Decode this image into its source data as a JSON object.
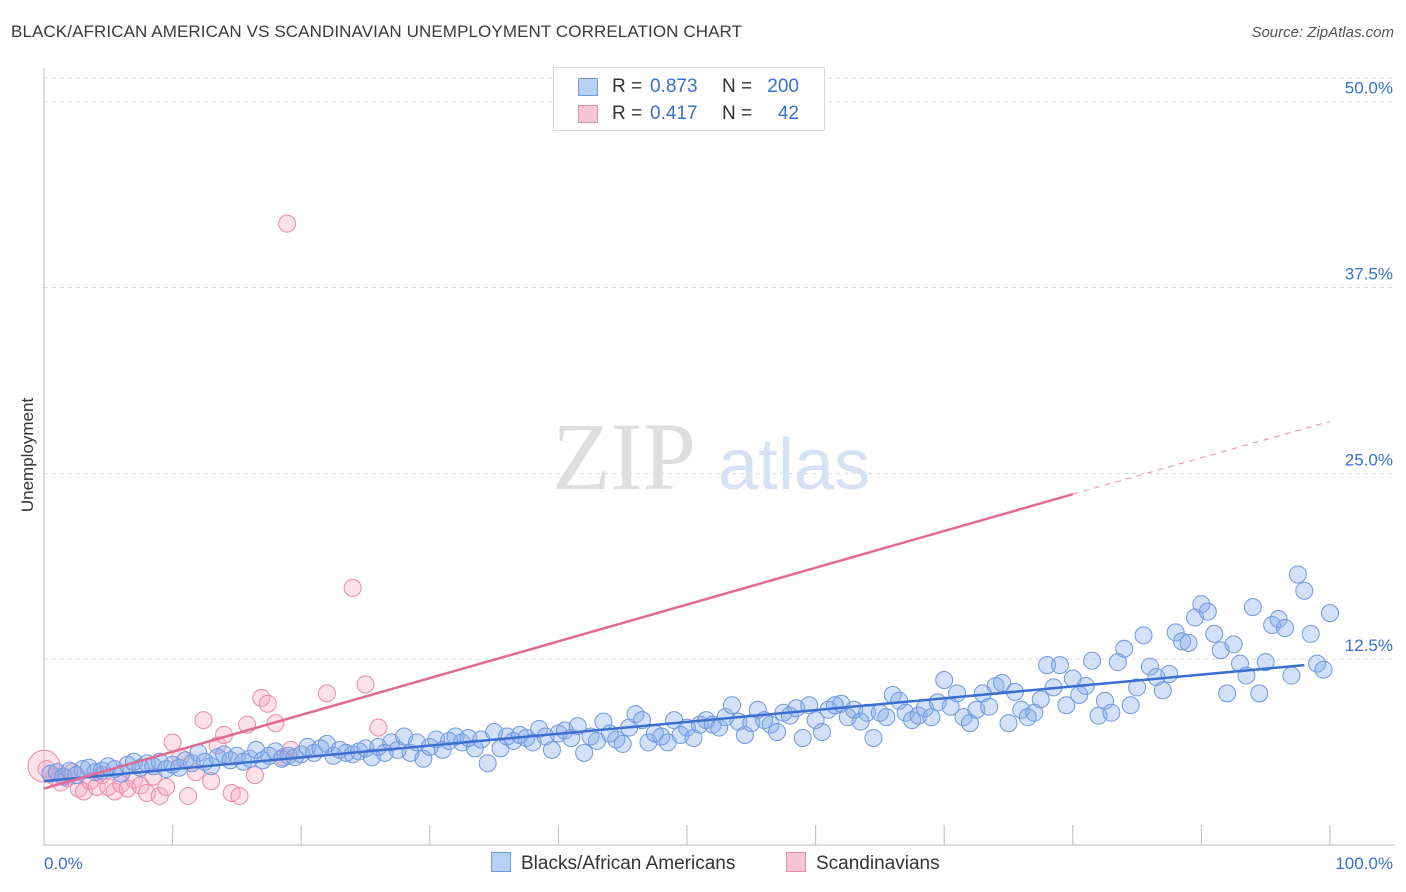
{
  "title": "BLACK/AFRICAN AMERICAN VS SCANDINAVIAN UNEMPLOYMENT CORRELATION CHART",
  "source": "Source: ZipAtlas.com",
  "watermark": {
    "zip": "ZIP",
    "atlas": "atlas"
  },
  "legend": {
    "r_label": "R =",
    "n_label": "N =",
    "series": [
      {
        "r": "0.873",
        "n": "200",
        "swatch_fill": "#b8d0f4",
        "swatch_stroke": "#6f98de"
      },
      {
        "r": "0.417",
        "n": "42",
        "swatch_fill": "#f7c6d6",
        "swatch_stroke": "#e88aa8"
      }
    ]
  },
  "bottom_legend": [
    "Blacks/African Americans",
    "Scandinavians"
  ],
  "colors": {
    "blue": "#3a6fd0",
    "blue_fill": "rgba(130,170,235,0.35)",
    "blue_stroke": "#6f98de",
    "pink": "#e06a97",
    "pink_fill": "rgba(245,170,195,0.35)",
    "pink_stroke": "#e88aa8",
    "tick_text": "#3a6fd0",
    "grid": "#d9d9d9"
  },
  "chart_data": {
    "type": "scatter",
    "title": "BLACK/AFRICAN AMERICAN VS SCANDINAVIAN UNEMPLOYMENT CORRELATION CHART",
    "xlabel": "",
    "ylabel": "Unemployment",
    "xlim": [
      0,
      100
    ],
    "ylim": [
      0,
      52
    ],
    "x_tick_labels": [
      "0.0%",
      "100.0%"
    ],
    "y_ticks": [
      12.5,
      25.0,
      37.5,
      50.0
    ],
    "y_tick_labels": [
      "12.5%",
      "25.0%",
      "37.5%",
      "50.0%"
    ],
    "grid": true,
    "legend_position": "top-center",
    "series": [
      {
        "name": "Blacks/African Americans",
        "r": 0.873,
        "n": 200,
        "trend": {
          "x": [
            0,
            98
          ],
          "y": [
            4.3,
            12.1
          ],
          "extend_to": 98
        },
        "points": [
          [
            0.5,
            4.8
          ],
          [
            1,
            4.9
          ],
          [
            1.5,
            4.6
          ],
          [
            2,
            5.0
          ],
          [
            2.5,
            4.7
          ],
          [
            3,
            5.1
          ],
          [
            3.5,
            5.2
          ],
          [
            4,
            4.9
          ],
          [
            4.5,
            5.0
          ],
          [
            5,
            5.3
          ],
          [
            5.5,
            5.1
          ],
          [
            6,
            4.8
          ],
          [
            6.5,
            5.4
          ],
          [
            7,
            5.6
          ],
          [
            7.5,
            5.2
          ],
          [
            8,
            5.5
          ],
          [
            8.5,
            5.3
          ],
          [
            9,
            5.6
          ],
          [
            9.5,
            5.1
          ],
          [
            10,
            5.4
          ],
          [
            10.5,
            5.2
          ],
          [
            11,
            5.7
          ],
          [
            11.5,
            5.5
          ],
          [
            12,
            6.2
          ],
          [
            12.5,
            5.6
          ],
          [
            13,
            5.3
          ],
          [
            13.5,
            5.9
          ],
          [
            14,
            6.1
          ],
          [
            14.5,
            5.7
          ],
          [
            15,
            6.0
          ],
          [
            15.5,
            5.6
          ],
          [
            16,
            5.8
          ],
          [
            16.5,
            6.4
          ],
          [
            17,
            5.7
          ],
          [
            17.5,
            6.0
          ],
          [
            18,
            6.3
          ],
          [
            18.5,
            5.8
          ],
          [
            19,
            6.0
          ],
          [
            19.5,
            5.9
          ],
          [
            20,
            6.1
          ],
          [
            20.5,
            6.6
          ],
          [
            21,
            6.2
          ],
          [
            21.5,
            6.5
          ],
          [
            22,
            6.8
          ],
          [
            22.5,
            6.0
          ],
          [
            23,
            6.4
          ],
          [
            23.5,
            6.2
          ],
          [
            24,
            6.1
          ],
          [
            24.5,
            6.3
          ],
          [
            25,
            6.5
          ],
          [
            25.5,
            5.9
          ],
          [
            26,
            6.6
          ],
          [
            26.5,
            6.2
          ],
          [
            27,
            6.9
          ],
          [
            27.5,
            6.4
          ],
          [
            28,
            7.3
          ],
          [
            28.5,
            6.2
          ],
          [
            29,
            6.9
          ],
          [
            29.5,
            5.8
          ],
          [
            30,
            6.6
          ],
          [
            30.5,
            7.1
          ],
          [
            31,
            6.4
          ],
          [
            31.5,
            7.0
          ],
          [
            32,
            7.3
          ],
          [
            32.5,
            6.9
          ],
          [
            33,
            7.2
          ],
          [
            33.5,
            6.5
          ],
          [
            34,
            7.1
          ],
          [
            34.5,
            5.5
          ],
          [
            35,
            7.6
          ],
          [
            35.5,
            6.5
          ],
          [
            36,
            7.3
          ],
          [
            36.5,
            7.0
          ],
          [
            37,
            7.4
          ],
          [
            37.5,
            7.2
          ],
          [
            38,
            6.9
          ],
          [
            38.5,
            7.8
          ],
          [
            39,
            7.3
          ],
          [
            39.5,
            6.4
          ],
          [
            40,
            7.5
          ],
          [
            40.5,
            7.7
          ],
          [
            41,
            7.2
          ],
          [
            41.5,
            8.0
          ],
          [
            42,
            6.2
          ],
          [
            42.5,
            7.3
          ],
          [
            43,
            7.0
          ],
          [
            43.5,
            8.3
          ],
          [
            44,
            7.5
          ],
          [
            44.5,
            7.1
          ],
          [
            45,
            6.8
          ],
          [
            45.5,
            7.9
          ],
          [
            46,
            8.8
          ],
          [
            46.5,
            8.4
          ],
          [
            47,
            6.9
          ],
          [
            47.5,
            7.5
          ],
          [
            48,
            7.3
          ],
          [
            48.5,
            6.9
          ],
          [
            49,
            8.4
          ],
          [
            49.5,
            7.4
          ],
          [
            50,
            7.9
          ],
          [
            50.5,
            7.2
          ],
          [
            51,
            8.1
          ],
          [
            51.5,
            8.4
          ],
          [
            52,
            8.1
          ],
          [
            52.5,
            7.9
          ],
          [
            53,
            8.6
          ],
          [
            53.5,
            9.4
          ],
          [
            54,
            8.3
          ],
          [
            54.5,
            7.4
          ],
          [
            55,
            8.2
          ],
          [
            55.5,
            9.1
          ],
          [
            56,
            8.4
          ],
          [
            56.5,
            8.1
          ],
          [
            57,
            7.6
          ],
          [
            57.5,
            8.9
          ],
          [
            58,
            8.7
          ],
          [
            58.5,
            9.2
          ],
          [
            59,
            7.2
          ],
          [
            59.5,
            9.4
          ],
          [
            60,
            8.4
          ],
          [
            60.5,
            7.6
          ],
          [
            61,
            9.1
          ],
          [
            61.5,
            9.4
          ],
          [
            62,
            9.5
          ],
          [
            62.5,
            8.6
          ],
          [
            63,
            9.1
          ],
          [
            63.5,
            8.3
          ],
          [
            64,
            8.9
          ],
          [
            64.5,
            7.2
          ],
          [
            65,
            8.9
          ],
          [
            65.5,
            8.6
          ],
          [
            66,
            10.1
          ],
          [
            66.5,
            9.7
          ],
          [
            67,
            8.9
          ],
          [
            67.5,
            8.4
          ],
          [
            68,
            8.7
          ],
          [
            68.5,
            9.2
          ],
          [
            69,
            8.6
          ],
          [
            69.5,
            9.6
          ],
          [
            70,
            11.1
          ],
          [
            70.5,
            9.3
          ],
          [
            71,
            10.2
          ],
          [
            71.5,
            8.6
          ],
          [
            72,
            8.2
          ],
          [
            72.5,
            9.1
          ],
          [
            73,
            10.2
          ],
          [
            73.5,
            9.3
          ],
          [
            74,
            10.7
          ],
          [
            74.5,
            10.9
          ],
          [
            75,
            8.2
          ],
          [
            75.5,
            10.3
          ],
          [
            76,
            9.1
          ],
          [
            76.5,
            8.6
          ],
          [
            77,
            8.9
          ],
          [
            77.5,
            9.8
          ],
          [
            78,
            12.1
          ],
          [
            78.5,
            10.6
          ],
          [
            79,
            12.1
          ],
          [
            79.5,
            9.4
          ],
          [
            80,
            11.2
          ],
          [
            80.5,
            10.1
          ],
          [
            81,
            10.7
          ],
          [
            81.5,
            12.4
          ],
          [
            82,
            8.7
          ],
          [
            82.5,
            9.7
          ],
          [
            83,
            8.9
          ],
          [
            83.5,
            12.3
          ],
          [
            84,
            13.2
          ],
          [
            84.5,
            9.4
          ],
          [
            85,
            10.6
          ],
          [
            85.5,
            14.1
          ],
          [
            86,
            12.0
          ],
          [
            86.5,
            11.3
          ],
          [
            87,
            10.4
          ],
          [
            87.5,
            11.5
          ],
          [
            88,
            14.3
          ],
          [
            88.5,
            13.7
          ],
          [
            89,
            13.6
          ],
          [
            89.5,
            15.3
          ],
          [
            90,
            16.2
          ],
          [
            90.5,
            15.7
          ],
          [
            91,
            14.2
          ],
          [
            91.5,
            13.1
          ],
          [
            92,
            10.2
          ],
          [
            92.5,
            13.5
          ],
          [
            93,
            12.2
          ],
          [
            93.5,
            11.4
          ],
          [
            94,
            16.0
          ],
          [
            94.5,
            10.2
          ],
          [
            95,
            12.3
          ],
          [
            95.5,
            14.8
          ],
          [
            96,
            15.2
          ],
          [
            96.5,
            14.6
          ],
          [
            97,
            11.4
          ],
          [
            97.5,
            18.2
          ],
          [
            98,
            17.1
          ],
          [
            98.5,
            14.2
          ],
          [
            99,
            12.2
          ],
          [
            99.5,
            11.8
          ],
          [
            100,
            15.6
          ]
        ]
      },
      {
        "name": "Scandinavians",
        "r": 0.417,
        "n": 42,
        "trend": {
          "x": [
            0,
            80
          ],
          "y": [
            3.8,
            23.6
          ],
          "dashed_to": [
            100,
            28.5
          ]
        },
        "points": [
          [
            0.2,
            5.1
          ],
          [
            0.8,
            4.6
          ],
          [
            1.3,
            4.2
          ],
          [
            1.8,
            4.5
          ],
          [
            2.2,
            4.9
          ],
          [
            2.7,
            3.8
          ],
          [
            3.1,
            3.6
          ],
          [
            3.6,
            4.3
          ],
          [
            4.1,
            3.9
          ],
          [
            4.5,
            4.7
          ],
          [
            5.0,
            3.9
          ],
          [
            5.5,
            3.6
          ],
          [
            6.0,
            4.1
          ],
          [
            6.5,
            3.8
          ],
          [
            7.0,
            4.4
          ],
          [
            7.5,
            4.0
          ],
          [
            8.0,
            3.5
          ],
          [
            8.5,
            4.6
          ],
          [
            9.0,
            3.3
          ],
          [
            9.5,
            3.9
          ],
          [
            10.0,
            6.9
          ],
          [
            10.6,
            5.9
          ],
          [
            11.2,
            3.3
          ],
          [
            11.8,
            4.9
          ],
          [
            12.4,
            8.4
          ],
          [
            13.0,
            4.3
          ],
          [
            13.5,
            6.7
          ],
          [
            14.0,
            7.4
          ],
          [
            14.6,
            3.5
          ],
          [
            15.2,
            3.3
          ],
          [
            15.8,
            8.1
          ],
          [
            16.4,
            4.7
          ],
          [
            16.9,
            9.9
          ],
          [
            17.4,
            9.5
          ],
          [
            18.0,
            8.2
          ],
          [
            18.6,
            5.9
          ],
          [
            19.2,
            6.4
          ],
          [
            22.0,
            10.2
          ],
          [
            24.0,
            17.3
          ],
          [
            25.0,
            10.8
          ],
          [
            26.0,
            7.9
          ],
          [
            18.9,
            41.8
          ]
        ]
      }
    ],
    "extra_points_note": ""
  }
}
